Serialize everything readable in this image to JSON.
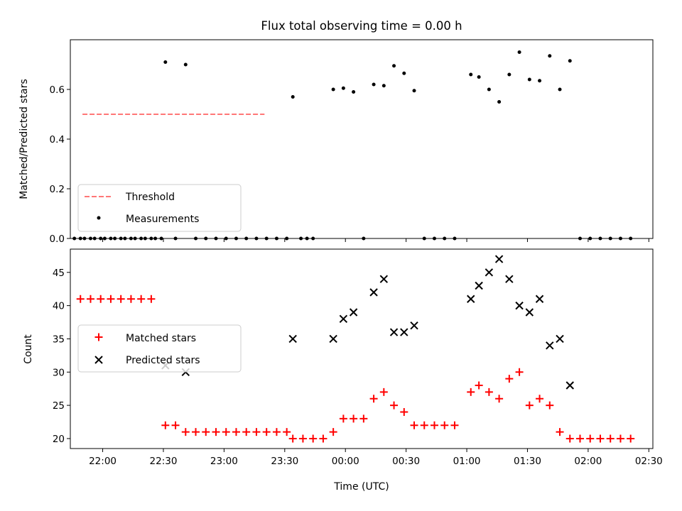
{
  "chart_data": [
    {
      "type": "scatter",
      "title": "Flux total observing time = 0.00 h",
      "xlabel": "",
      "ylabel": "Matched/Predicted stars",
      "ylim": [
        0,
        0.8
      ],
      "yticks": [
        "0.0",
        "0.2",
        "0.4",
        "0.6"
      ],
      "legend": {
        "placement": "lower-left",
        "entries": [
          "Threshold",
          "Measurements"
        ]
      },
      "threshold": {
        "name": "Threshold",
        "value": 0.5,
        "x_range": [
          "21:50",
          "23:20"
        ],
        "color": "#ff7777"
      },
      "series": [
        {
          "name": "Measurements",
          "color": "#000000",
          "points": [
            [
              "21:46",
              0
            ],
            [
              "21:49",
              0
            ],
            [
              "21:51",
              0
            ],
            [
              "21:54",
              0
            ],
            [
              "21:56",
              0
            ],
            [
              "21:59",
              0
            ],
            [
              "22:01",
              0
            ],
            [
              "22:04",
              0
            ],
            [
              "22:06",
              0
            ],
            [
              "22:09",
              0
            ],
            [
              "22:11",
              0
            ],
            [
              "22:14",
              0
            ],
            [
              "22:16",
              0
            ],
            [
              "22:19",
              0
            ],
            [
              "22:21",
              0
            ],
            [
              "22:24",
              0
            ],
            [
              "22:26",
              0
            ],
            [
              "22:29",
              0
            ],
            [
              "22:31",
              0.71
            ],
            [
              "22:36",
              0
            ],
            [
              "22:41",
              0.7
            ],
            [
              "22:46",
              0
            ],
            [
              "22:51",
              0
            ],
            [
              "22:56",
              0
            ],
            [
              "23:01",
              0
            ],
            [
              "23:06",
              0
            ],
            [
              "23:11",
              0
            ],
            [
              "23:16",
              0
            ],
            [
              "23:21",
              0
            ],
            [
              "23:26",
              0
            ],
            [
              "23:31",
              0
            ],
            [
              "23:34",
              0.57
            ],
            [
              "23:38",
              0
            ],
            [
              "23:41",
              0
            ],
            [
              "23:44",
              0
            ],
            [
              "23:54",
              0.6
            ],
            [
              "23:59",
              0.605
            ],
            [
              "00:04",
              0.59
            ],
            [
              "00:09",
              0
            ],
            [
              "00:14",
              0.62
            ],
            [
              "00:19",
              0.615
            ],
            [
              "00:24",
              0.695
            ],
            [
              "00:29",
              0.665
            ],
            [
              "00:34",
              0.595
            ],
            [
              "00:39",
              0
            ],
            [
              "00:44",
              0
            ],
            [
              "00:49",
              0
            ],
            [
              "00:54",
              0
            ],
            [
              "01:02",
              0.66
            ],
            [
              "01:06",
              0.65
            ],
            [
              "01:11",
              0.6
            ],
            [
              "01:16",
              0.55
            ],
            [
              "01:21",
              0.66
            ],
            [
              "01:26",
              0.75
            ],
            [
              "01:31",
              0.64
            ],
            [
              "01:36",
              0.635
            ],
            [
              "01:41",
              0.735
            ],
            [
              "01:46",
              0.6
            ],
            [
              "01:51",
              0.715
            ],
            [
              "01:56",
              0
            ],
            [
              "02:01",
              0
            ],
            [
              "02:06",
              0
            ],
            [
              "02:11",
              0
            ],
            [
              "02:16",
              0
            ],
            [
              "02:21",
              0
            ]
          ]
        }
      ]
    },
    {
      "type": "scatter",
      "title": "",
      "xlabel": "Time (UTC)",
      "ylabel": "Count",
      "ylim": [
        18.5,
        48.5
      ],
      "yticks": [
        "20",
        "25",
        "30",
        "35",
        "40",
        "45"
      ],
      "xticks": [
        "22:00",
        "22:30",
        "23:00",
        "23:30",
        "00:00",
        "00:30",
        "01:00",
        "01:30",
        "02:00",
        "02:30"
      ],
      "xlim": [
        "21:44",
        "02:32"
      ],
      "legend": {
        "placement": "center-left",
        "entries": [
          "Matched stars",
          "Predicted stars"
        ]
      },
      "series": [
        {
          "name": "Matched stars",
          "marker": "plus",
          "color": "#ff0000",
          "points": [
            [
              "21:49",
              41
            ],
            [
              "21:54",
              41
            ],
            [
              "21:59",
              41
            ],
            [
              "22:04",
              41
            ],
            [
              "22:09",
              41
            ],
            [
              "22:14",
              41
            ],
            [
              "22:19",
              41
            ],
            [
              "22:24",
              41
            ],
            [
              "22:31",
              22
            ],
            [
              "22:36",
              22
            ],
            [
              "22:41",
              21
            ],
            [
              "22:46",
              21
            ],
            [
              "22:51",
              21
            ],
            [
              "22:56",
              21
            ],
            [
              "23:01",
              21
            ],
            [
              "23:06",
              21
            ],
            [
              "23:11",
              21
            ],
            [
              "23:16",
              21
            ],
            [
              "23:21",
              21
            ],
            [
              "23:26",
              21
            ],
            [
              "23:31",
              21
            ],
            [
              "23:34",
              20
            ],
            [
              "23:39",
              20
            ],
            [
              "23:44",
              20
            ],
            [
              "23:49",
              20
            ],
            [
              "23:54",
              21
            ],
            [
              "23:59",
              23
            ],
            [
              "00:04",
              23
            ],
            [
              "00:09",
              23
            ],
            [
              "00:14",
              26
            ],
            [
              "00:19",
              27
            ],
            [
              "00:24",
              25
            ],
            [
              "00:29",
              24
            ],
            [
              "00:34",
              22
            ],
            [
              "00:39",
              22
            ],
            [
              "00:44",
              22
            ],
            [
              "00:49",
              22
            ],
            [
              "00:54",
              22
            ],
            [
              "01:02",
              27
            ],
            [
              "01:06",
              28
            ],
            [
              "01:11",
              27
            ],
            [
              "01:16",
              26
            ],
            [
              "01:21",
              29
            ],
            [
              "01:26",
              30
            ],
            [
              "01:31",
              25
            ],
            [
              "01:36",
              26
            ],
            [
              "01:41",
              25
            ],
            [
              "01:46",
              21
            ],
            [
              "01:51",
              20
            ],
            [
              "01:56",
              20
            ],
            [
              "02:01",
              20
            ],
            [
              "02:06",
              20
            ],
            [
              "02:11",
              20
            ],
            [
              "02:16",
              20
            ],
            [
              "02:21",
              20
            ]
          ]
        },
        {
          "name": "Predicted stars",
          "marker": "x",
          "color": "#000000",
          "points": [
            [
              "22:31",
              31
            ],
            [
              "22:41",
              30
            ],
            [
              "23:34",
              35
            ],
            [
              "23:54",
              35
            ],
            [
              "23:59",
              38
            ],
            [
              "00:04",
              39
            ],
            [
              "00:14",
              42
            ],
            [
              "00:19",
              44
            ],
            [
              "00:24",
              36
            ],
            [
              "00:29",
              36
            ],
            [
              "00:34",
              37
            ],
            [
              "01:02",
              41
            ],
            [
              "01:06",
              43
            ],
            [
              "01:11",
              45
            ],
            [
              "01:16",
              47
            ],
            [
              "01:21",
              44
            ],
            [
              "01:26",
              40
            ],
            [
              "01:31",
              39
            ],
            [
              "01:36",
              41
            ],
            [
              "01:41",
              34
            ],
            [
              "01:46",
              35
            ],
            [
              "01:51",
              28
            ]
          ]
        }
      ]
    }
  ]
}
